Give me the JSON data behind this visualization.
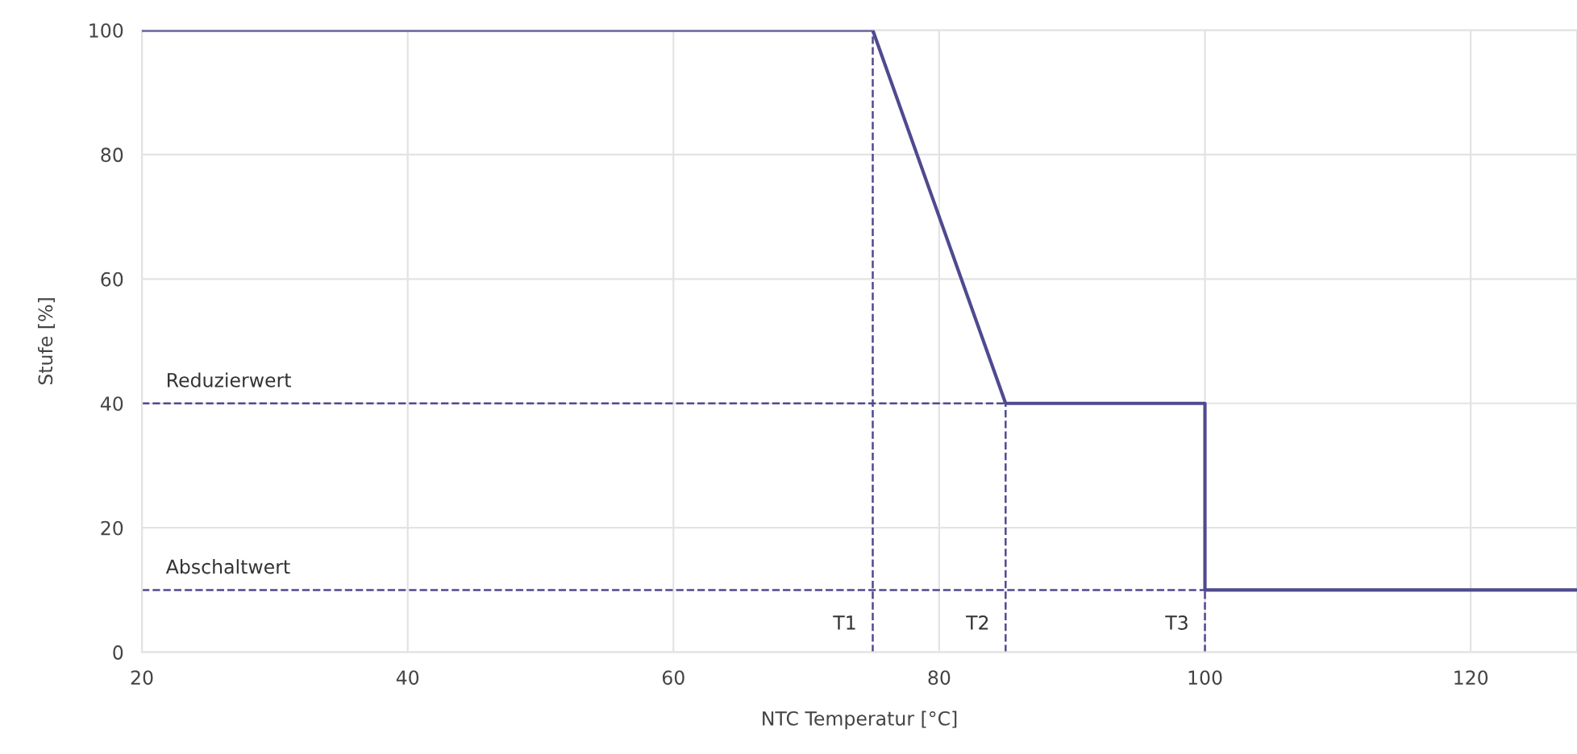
{
  "chart_data": {
    "type": "line",
    "xlabel": "NTC Temperatur [°C]",
    "ylabel": "Stufe [%]",
    "x": [
      20,
      75,
      85,
      100,
      100,
      128
    ],
    "series": [
      {
        "color": "#4f4a8f",
        "values": [
          100,
          100,
          40,
          40,
          10,
          10
        ]
      }
    ],
    "xlim": [
      20,
      128
    ],
    "ylim": [
      0,
      100
    ],
    "xticks": [
      20,
      40,
      60,
      80,
      100,
      120
    ],
    "yticks": [
      0,
      20,
      40,
      60,
      80,
      100
    ],
    "grid": true,
    "line_style": "solid",
    "marker": "none",
    "ref_lines": [
      {
        "axis": "y",
        "value": 40,
        "label": "Reduzierwert",
        "color": "#4f4a8f",
        "line_style": "dashed"
      },
      {
        "axis": "y",
        "value": 10,
        "label": "Abschaltwert",
        "color": "#4f4a8f",
        "line_style": "dashed"
      },
      {
        "axis": "x",
        "value": 75,
        "label": "T1",
        "color": "#4f4a8f",
        "line_style": "dashed"
      },
      {
        "axis": "x",
        "value": 85,
        "label": "T2",
        "color": "#4f4a8f",
        "line_style": "dashed"
      },
      {
        "axis": "x",
        "value": 100,
        "label": "T3",
        "color": "#4f4a8f",
        "line_style": "dashed"
      }
    ]
  }
}
